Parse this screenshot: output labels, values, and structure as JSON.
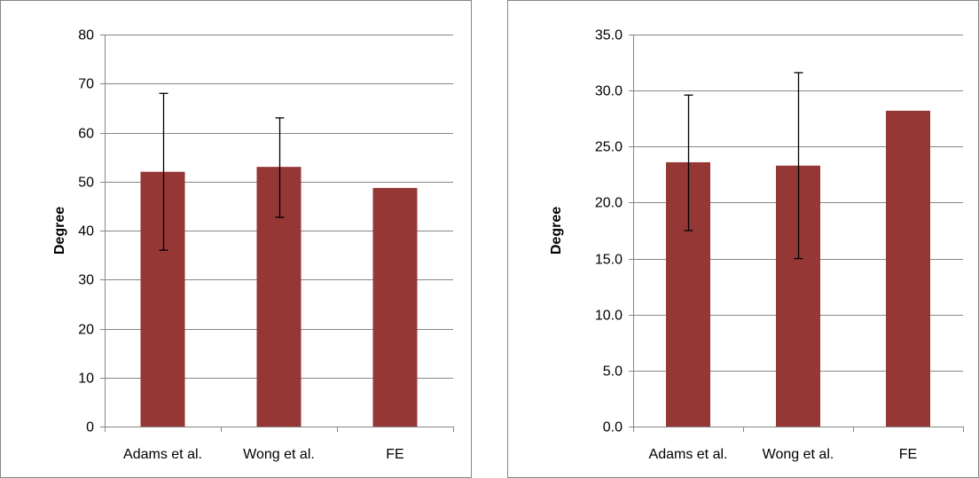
{
  "chart_data": [
    {
      "type": "bar",
      "categories": [
        "Adams et al.",
        "Wong et al.",
        "FE"
      ],
      "values": [
        52,
        53,
        48.7
      ],
      "error_bars": [
        {
          "low": 36,
          "high": 68
        },
        {
          "low": 42.7,
          "high": 63
        },
        null
      ],
      "ylabel": "Degree",
      "ylim": [
        0,
        80
      ],
      "yticks": [
        "0",
        "10",
        "20",
        "30",
        "40",
        "50",
        "60",
        "70",
        "80"
      ],
      "ytick_values": [
        0,
        10,
        20,
        30,
        40,
        50,
        60,
        70,
        80
      ],
      "grid": true,
      "bar_color": "#953735",
      "grid_color": "#868686"
    },
    {
      "type": "bar",
      "categories": [
        "Adams et al.",
        "Wong et al.",
        "FE"
      ],
      "values": [
        23.6,
        23.3,
        28.2
      ],
      "error_bars": [
        {
          "low": 17.5,
          "high": 29.6
        },
        {
          "low": 15.0,
          "high": 31.6
        },
        null
      ],
      "ylabel": "Degree",
      "ylim": [
        0,
        35
      ],
      "yticks": [
        "0.0",
        "5.0",
        "10.0",
        "15.0",
        "20.0",
        "25.0",
        "30.0",
        "35.0"
      ],
      "ytick_values": [
        0,
        5,
        10,
        15,
        20,
        25,
        30,
        35
      ],
      "grid": true,
      "bar_color": "#953735",
      "grid_color": "#868686"
    }
  ]
}
